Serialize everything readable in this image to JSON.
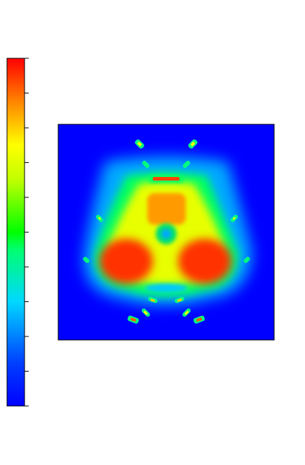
{
  "chart_data": {
    "type": "heatmap",
    "title": "",
    "xlabel": "",
    "ylabel": "",
    "colormap": "jet",
    "colorbar": {
      "position": "left",
      "tick_count": 10,
      "tick_labels": []
    },
    "background_color": "#0000ff",
    "hotspots": [
      {
        "name": "left-lobe",
        "x": 0.3,
        "y": 0.64,
        "value": 1.0
      },
      {
        "name": "right-lobe",
        "x": 0.7,
        "y": 0.64,
        "value": 1.0
      },
      {
        "name": "upper-arch",
        "x": 0.5,
        "y": 0.36,
        "value": 0.72
      },
      {
        "name": "center-ring",
        "x": 0.5,
        "y": 0.5,
        "value": 0.45
      },
      {
        "name": "top-bar",
        "x": 0.5,
        "y": 0.25,
        "value": 0.85
      }
    ]
  }
}
